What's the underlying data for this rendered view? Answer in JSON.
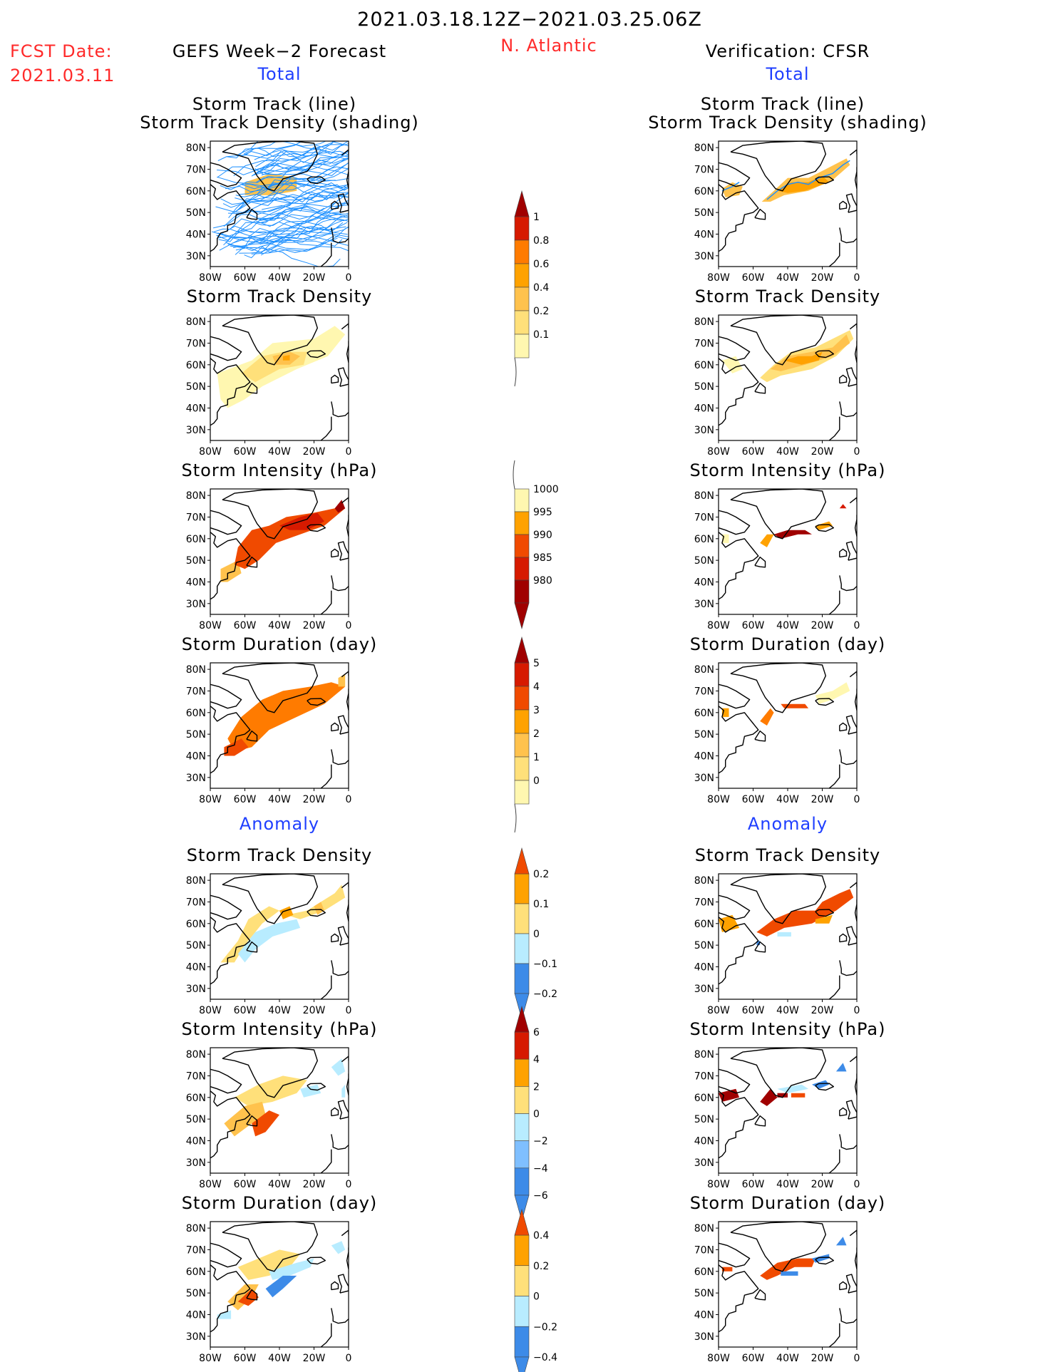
{
  "header": {
    "period": "2021.03.18.12Z−2021.03.25.06Z",
    "fcst_label": "FCST Date:",
    "fcst_date": "2021.03.11",
    "model_title": "GEFS Week−2 Forecast",
    "region": "N. Atlantic",
    "verification_title": "Verification: CFSR"
  },
  "sections": {
    "total": "Total",
    "anomaly": "Anomaly"
  },
  "panel_titles": {
    "track_line": "Storm Track (line)",
    "track_shading": "Storm Track Density (shading)",
    "density": "Storm Track Density",
    "intensity": "Storm Intensity (hPa)",
    "duration": "Storm Duration (day)"
  },
  "axes": {
    "lat_ticks": [
      "80N",
      "70N",
      "60N",
      "50N",
      "40N",
      "30N"
    ],
    "lon_ticks": [
      "80W",
      "60W",
      "40W",
      "20W",
      "0"
    ]
  },
  "colorbars": {
    "density_total": [
      "1",
      "0.8",
      "0.6",
      "0.4",
      "0.2",
      "0.1"
    ],
    "intensity_total": [
      "1000",
      "995",
      "990",
      "985",
      "980"
    ],
    "duration_total": [
      "5",
      "4",
      "3",
      "2",
      "1",
      "0"
    ],
    "density_anom": [
      "0.2",
      "0.1",
      "0",
      "−0.1",
      "−0.2"
    ],
    "intensity_anom": [
      "6",
      "4",
      "2",
      "0",
      "−2",
      "−4",
      "−6"
    ],
    "duration_anom": [
      "0.4",
      "0.2",
      "0",
      "−0.2",
      "−0.4"
    ]
  },
  "colors": {
    "title_red": "#ff2a2a",
    "section_blue": "#1f3fff",
    "track_line": "#1e90ff",
    "pale_yellow": "#fff7b0",
    "yellow": "#ffe07a",
    "light_orange": "#ffc24d",
    "orange": "#ffa200",
    "dark_orange": "#ff7b00",
    "red_orange": "#f04a00",
    "red": "#d61a00",
    "dark_red": "#a00000",
    "light_blue": "#b8ecff",
    "blue": "#7fbfff",
    "mid_blue": "#3d8be8",
    "dark_blue": "#1a5ec9"
  }
}
